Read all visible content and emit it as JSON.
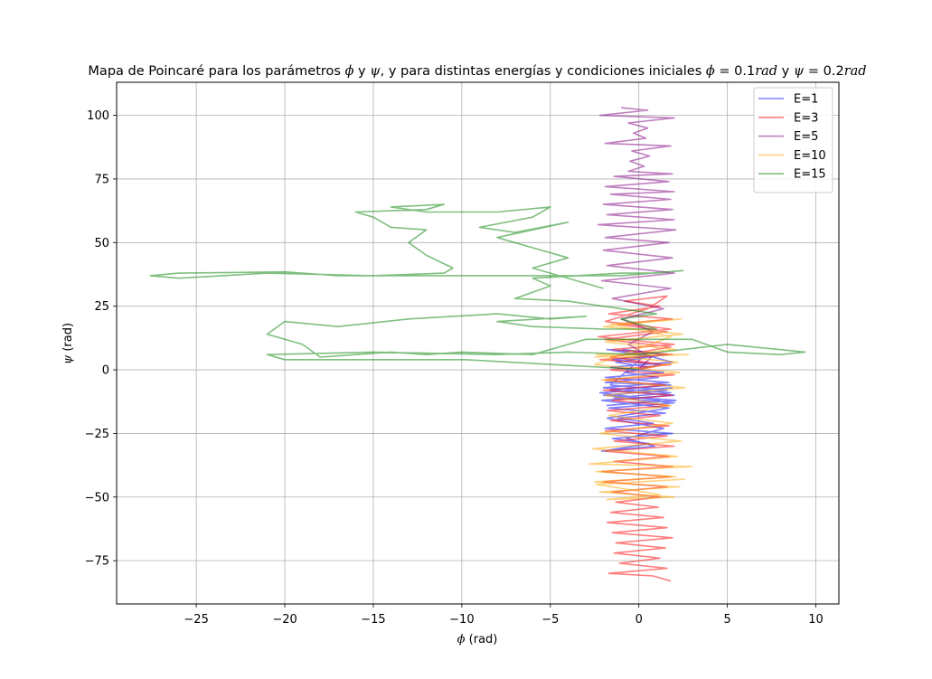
{
  "chart_data": {
    "type": "line",
    "title": "Mapa de Poincaré para los parámetros ϕ y ψ, y para distintas energías y condiciones iniciales ϕ = 0.1rad y ψ = 0.2rad",
    "title_parts": {
      "pre": "Mapa de Poincaré para los parámetros ",
      "phi": "ϕ",
      "y1": " y ",
      "psi": "ψ",
      "mid": ", y para distintas energías y condiciones iniciales ",
      "phi2": "ϕ",
      "eq1": " = 0.1",
      "rad1": "rad",
      "y2": " y ",
      "psi2": "ψ",
      "eq2": " = 0.2",
      "rad2": "rad"
    },
    "xlabel": {
      "sym": "ϕ",
      "unit": " (rad)"
    },
    "ylabel": {
      "sym": "ψ",
      "unit": " (rad)"
    },
    "xlim": [
      -29.5,
      11.3
    ],
    "ylim": [
      -92,
      113
    ],
    "xticks": [
      -25,
      -20,
      -15,
      -10,
      -5,
      0,
      5,
      10
    ],
    "yticks": [
      -75,
      -50,
      -25,
      0,
      25,
      50,
      75,
      100
    ],
    "xtick_labels": [
      "−25",
      "−20",
      "−15",
      "−10",
      "−5",
      "0",
      "5",
      "10"
    ],
    "ytick_labels": [
      "−75",
      "−50",
      "−25",
      "0",
      "25",
      "50",
      "75",
      "100"
    ],
    "grid": true,
    "legend": "top-right",
    "series": [
      {
        "name": "E=1",
        "color": "#0000ff",
        "points": [
          [
            0,
            0.2
          ],
          [
            1.2,
            2
          ],
          [
            -1.5,
            4
          ],
          [
            1.6,
            6
          ],
          [
            -1.8,
            8
          ],
          [
            0.8,
            5
          ],
          [
            1.9,
            3
          ],
          [
            -1.6,
            1
          ],
          [
            1.4,
            -1
          ],
          [
            -1.9,
            -3
          ],
          [
            1.7,
            -5
          ],
          [
            -2,
            -7
          ],
          [
            1.8,
            -9
          ],
          [
            -1.4,
            -11
          ],
          [
            2,
            -13
          ],
          [
            -1.7,
            -15
          ],
          [
            1.5,
            -17
          ],
          [
            -1.2,
            -19
          ],
          [
            0.8,
            -21
          ],
          [
            -1.9,
            -23
          ],
          [
            1.9,
            -25
          ],
          [
            -1.5,
            -27
          ],
          [
            0.6,
            -29
          ],
          [
            -2.1,
            -32
          ],
          [
            0.9,
            -30
          ],
          [
            -0.7,
            -27
          ],
          [
            1.4,
            -23
          ],
          [
            -1.8,
            -19
          ],
          [
            1.7,
            -15
          ],
          [
            -2.1,
            -12
          ],
          [
            2,
            -10
          ],
          [
            -1.6,
            -8
          ],
          [
            1.8,
            -6
          ],
          [
            -1.9,
            -5
          ],
          [
            1.1,
            -3
          ],
          [
            -0.8,
            -1
          ],
          [
            0.6,
            1
          ],
          [
            -1.3,
            3
          ],
          [
            1.5,
            6
          ],
          [
            -0.9,
            8
          ],
          [
            0.4,
            6
          ],
          [
            -1.6,
            -6
          ],
          [
            1.6,
            -8
          ],
          [
            -2,
            -10
          ],
          [
            2.1,
            -12
          ],
          [
            -1.8,
            -14
          ],
          [
            1.2,
            -12
          ],
          [
            -2.2,
            -9
          ],
          [
            1.9,
            -7
          ]
        ]
      },
      {
        "name": "E=3",
        "color": "#ff0000",
        "points": [
          [
            0,
            0.2
          ],
          [
            1.5,
            2
          ],
          [
            -1.6,
            5
          ],
          [
            1.8,
            9
          ],
          [
            -1.9,
            12
          ],
          [
            1.6,
            15
          ],
          [
            -1.2,
            18
          ],
          [
            1.9,
            20
          ],
          [
            -1.7,
            22
          ],
          [
            1.2,
            25
          ],
          [
            -0.8,
            27
          ],
          [
            1.6,
            29
          ],
          [
            0.5,
            24
          ],
          [
            -1.9,
            19
          ],
          [
            1.8,
            16
          ],
          [
            -2.3,
            13
          ],
          [
            2,
            10
          ],
          [
            -1.5,
            8
          ],
          [
            1.9,
            6
          ],
          [
            -2.2,
            4
          ],
          [
            1.8,
            2
          ],
          [
            -1.6,
            0
          ],
          [
            2,
            -2
          ],
          [
            -1.9,
            -4
          ],
          [
            1.5,
            -6
          ],
          [
            -2,
            -8
          ],
          [
            1.9,
            -10
          ],
          [
            -1.5,
            -12
          ],
          [
            1.7,
            -14
          ],
          [
            -1.8,
            -16
          ],
          [
            1.2,
            -18
          ],
          [
            -1.6,
            -20
          ],
          [
            1.7,
            -22
          ],
          [
            -1.9,
            -24
          ],
          [
            1.6,
            -26
          ],
          [
            -1.4,
            -28
          ],
          [
            2,
            -30
          ],
          [
            -1.9,
            -32
          ],
          [
            1.7,
            -34
          ],
          [
            -1.4,
            -36
          ],
          [
            1.9,
            -38
          ],
          [
            -2.1,
            -40
          ],
          [
            1.8,
            -42
          ],
          [
            -2,
            -44
          ],
          [
            1.6,
            -46
          ],
          [
            -1.5,
            -48
          ],
          [
            1.2,
            -50
          ],
          [
            -1.3,
            -52
          ],
          [
            1.1,
            -54
          ],
          [
            -1.6,
            -56
          ],
          [
            1.4,
            -58
          ],
          [
            -1.8,
            -60
          ],
          [
            1.6,
            -62
          ],
          [
            -1.5,
            -64
          ],
          [
            1.9,
            -66
          ],
          [
            -1.3,
            -68
          ],
          [
            1.5,
            -70
          ],
          [
            -1.4,
            -72
          ],
          [
            1.2,
            -74
          ],
          [
            -1.1,
            -76
          ],
          [
            1.6,
            -78
          ],
          [
            -1.7,
            -80
          ],
          [
            0.8,
            -81
          ],
          [
            1.8,
            -83
          ]
        ]
      },
      {
        "name": "E=5",
        "color": "#800080",
        "points": [
          [
            0,
            0.2
          ],
          [
            0.7,
            5
          ],
          [
            -0.6,
            10
          ],
          [
            0.8,
            15
          ],
          [
            -1,
            20
          ],
          [
            1.4,
            24
          ],
          [
            -1.5,
            28
          ],
          [
            1.8,
            32
          ],
          [
            -2.1,
            35
          ],
          [
            2,
            38
          ],
          [
            -1.8,
            41
          ],
          [
            1.9,
            44
          ],
          [
            -2,
            47
          ],
          [
            1.7,
            50
          ],
          [
            -1.9,
            52
          ],
          [
            2.1,
            55
          ],
          [
            -2.3,
            57
          ],
          [
            2,
            59
          ],
          [
            -1.8,
            61
          ],
          [
            1.9,
            63
          ],
          [
            -2,
            65
          ],
          [
            1.8,
            67
          ],
          [
            -1.6,
            69
          ],
          [
            2,
            70
          ],
          [
            -1.9,
            72
          ],
          [
            1.7,
            74
          ],
          [
            -1.4,
            76
          ],
          [
            1.9,
            77
          ],
          [
            -0.6,
            78
          ],
          [
            0.3,
            80
          ],
          [
            -0.5,
            82
          ],
          [
            0.6,
            84
          ],
          [
            -0.4,
            86
          ],
          [
            1.8,
            88
          ],
          [
            -1.9,
            89
          ],
          [
            0.4,
            91
          ],
          [
            -0.3,
            93
          ],
          [
            0.5,
            95
          ],
          [
            -0.6,
            97
          ],
          [
            2,
            99
          ],
          [
            -2.2,
            100
          ],
          [
            0.5,
            102
          ],
          [
            -1,
            103
          ]
        ]
      },
      {
        "name": "E=10",
        "color": "#ffa500",
        "points": [
          [
            0,
            0.2
          ],
          [
            2.2,
            3
          ],
          [
            -2.4,
            6
          ],
          [
            2.8,
            6
          ],
          [
            -2.5,
            5
          ],
          [
            2.1,
            8
          ],
          [
            -1.9,
            11
          ],
          [
            2.5,
            14
          ],
          [
            -2,
            17
          ],
          [
            2.4,
            20
          ],
          [
            -1.6,
            18
          ],
          [
            1.8,
            13
          ],
          [
            -2.5,
            2
          ],
          [
            2.3,
            -1
          ],
          [
            -2.1,
            -4
          ],
          [
            2.6,
            -7
          ],
          [
            -1.9,
            -10
          ],
          [
            1.8,
            -14
          ],
          [
            -1.7,
            -18
          ],
          [
            1.9,
            -21
          ],
          [
            -2.2,
            -25
          ],
          [
            2.4,
            -28
          ],
          [
            -2.6,
            -31
          ],
          [
            2.2,
            -34
          ],
          [
            -2.8,
            -37
          ],
          [
            3,
            -38
          ],
          [
            -2.4,
            -40
          ],
          [
            2.1,
            -42
          ],
          [
            -2.5,
            -44
          ],
          [
            2.3,
            -46
          ],
          [
            -2.2,
            -48
          ],
          [
            2,
            -50
          ],
          [
            -1.8,
            -51
          ],
          [
            1.2,
            -49
          ],
          [
            -2.4,
            -45
          ],
          [
            2.6,
            -43
          ]
        ]
      },
      {
        "name": "E=15",
        "color": "#008000",
        "points": [
          [
            0,
            0.2
          ],
          [
            -9.8,
            4
          ],
          [
            -20,
            4
          ],
          [
            -21,
            6
          ],
          [
            -15,
            7
          ],
          [
            -8,
            6
          ],
          [
            -4,
            7
          ],
          [
            0,
            6
          ],
          [
            5,
            10
          ],
          [
            9.4,
            7
          ],
          [
            8,
            6
          ],
          [
            5,
            7
          ],
          [
            3,
            12
          ],
          [
            -3,
            12
          ],
          [
            -6,
            6
          ],
          [
            -10,
            7
          ],
          [
            -12,
            6
          ],
          [
            -14,
            7
          ],
          [
            -18,
            5
          ],
          [
            -19,
            10
          ],
          [
            -21,
            14
          ],
          [
            -20,
            19
          ],
          [
            -17,
            17
          ],
          [
            -13,
            20
          ],
          [
            -8,
            22
          ],
          [
            -5,
            20
          ],
          [
            -3,
            21
          ],
          [
            -8,
            19
          ],
          [
            -6,
            17
          ],
          [
            -2,
            16
          ],
          [
            1,
            16
          ],
          [
            -1,
            20
          ],
          [
            1,
            22
          ],
          [
            -4,
            27
          ],
          [
            -7,
            28
          ],
          [
            -5,
            33
          ],
          [
            -6,
            36
          ],
          [
            -1,
            38
          ],
          [
            1,
            38
          ],
          [
            2.5,
            39
          ],
          [
            -1,
            37
          ],
          [
            -10,
            37
          ],
          [
            -17,
            37
          ],
          [
            -20,
            38.5
          ],
          [
            -26,
            38
          ],
          [
            -27.6,
            37
          ],
          [
            -26,
            36
          ],
          [
            -21,
            38
          ],
          [
            -15,
            37
          ],
          [
            -11,
            38
          ],
          [
            -10.5,
            40
          ],
          [
            -12,
            45
          ],
          [
            -13,
            50
          ],
          [
            -12,
            55
          ],
          [
            -14,
            56
          ],
          [
            -15,
            60
          ],
          [
            -16,
            62
          ],
          [
            -12,
            63
          ],
          [
            -11,
            65
          ],
          [
            -14,
            64
          ],
          [
            -12,
            62
          ],
          [
            -8,
            62
          ],
          [
            -5,
            64
          ],
          [
            -6,
            60
          ],
          [
            -9,
            56
          ],
          [
            -7,
            54
          ],
          [
            -4,
            58
          ],
          [
            -8,
            52
          ],
          [
            -6,
            48
          ],
          [
            -4,
            44
          ],
          [
            -6,
            40
          ],
          [
            -2,
            32
          ]
        ]
      }
    ]
  }
}
